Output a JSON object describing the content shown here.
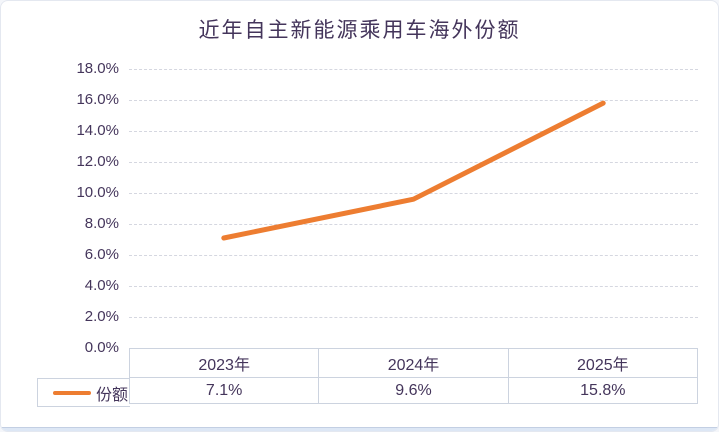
{
  "chart": {
    "title": "近年自主新能源乘用车海外份额",
    "legend_label": "份额",
    "accent_color": "#ED7D31",
    "text_color": "#44355B"
  },
  "chart_data": {
    "type": "line",
    "title": "近年自主新能源乘用车海外份额",
    "categories": [
      "2023年",
      "2024年",
      "2025年"
    ],
    "series": [
      {
        "name": "份额",
        "values": [
          7.1,
          9.6,
          15.8
        ],
        "color": "#ED7D31"
      }
    ],
    "values_display": [
      "7.1%",
      "9.6%",
      "15.8%"
    ],
    "xlabel": "",
    "ylabel": "",
    "ylim": [
      0,
      18
    ],
    "ytick_step": 2,
    "ytick_labels": [
      "0.0%",
      "2.0%",
      "4.0%",
      "6.0%",
      "8.0%",
      "10.0%",
      "12.0%",
      "14.0%",
      "16.0%",
      "18.0%"
    ],
    "grid": "horizontal-dashed",
    "legend_position": "bottom-left-table-key",
    "data_table_shown": true
  }
}
